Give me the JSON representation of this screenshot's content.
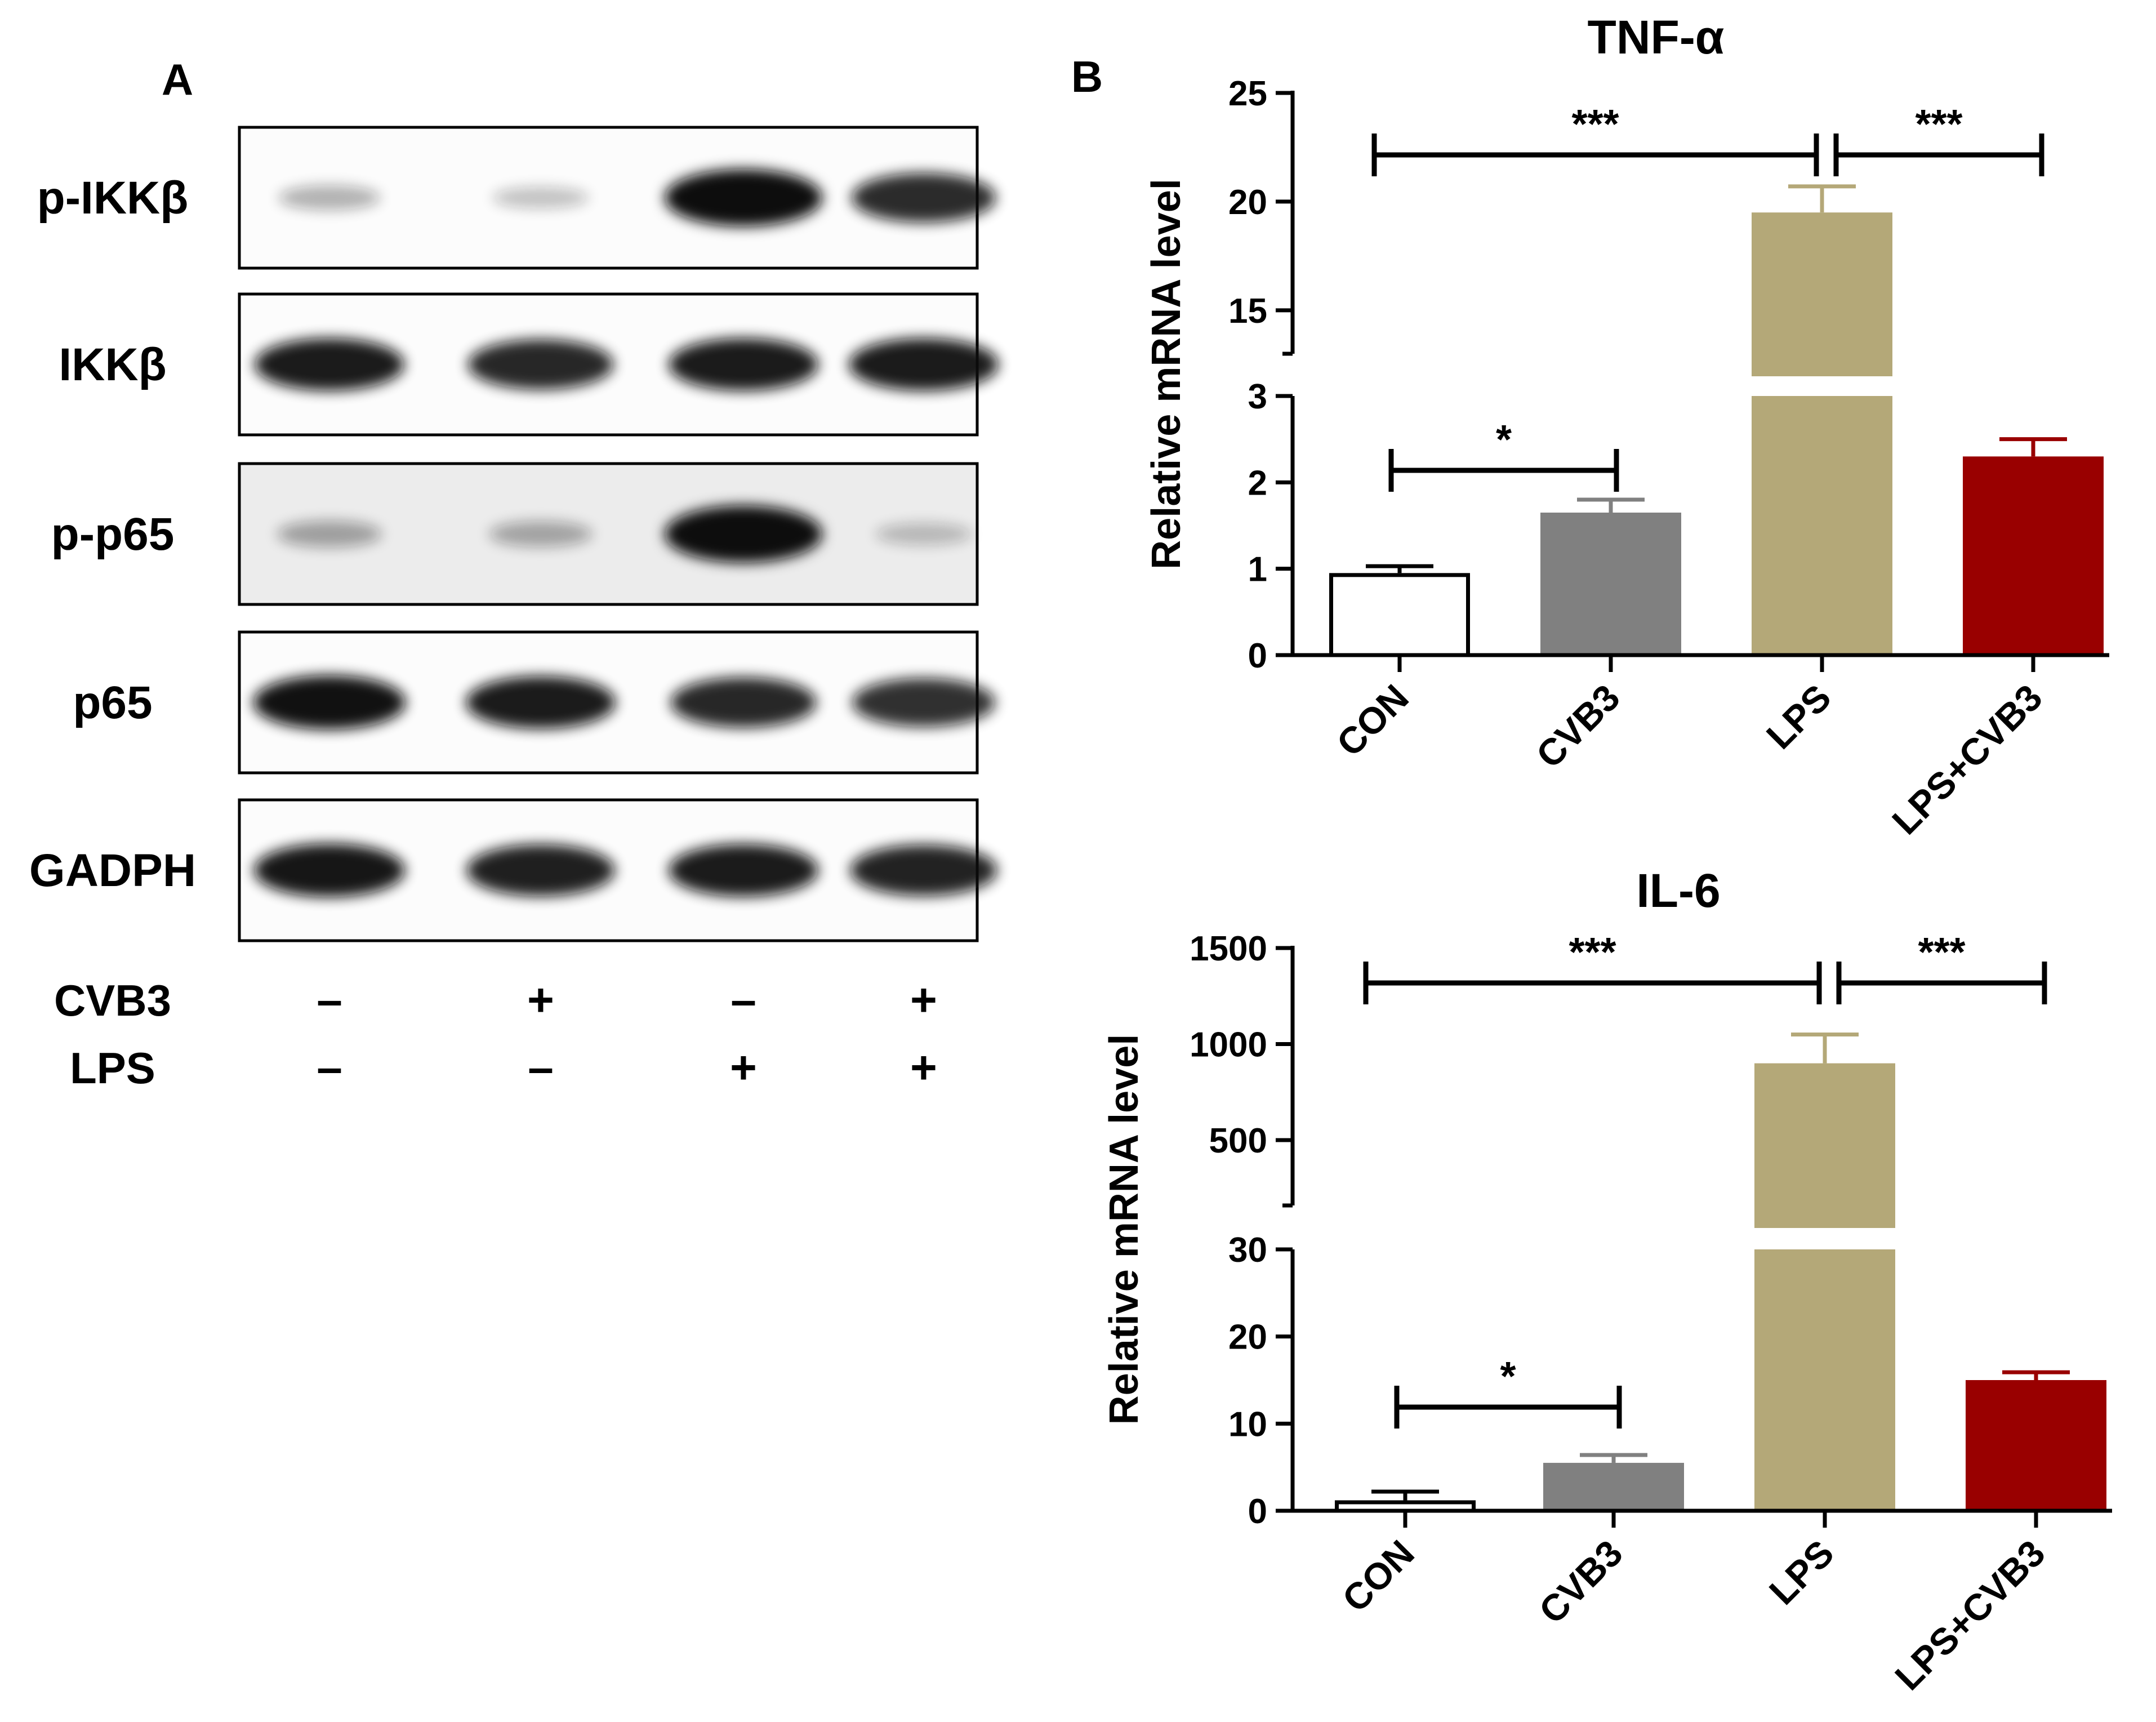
{
  "panel_a": {
    "label": "A",
    "blots": [
      {
        "name": "p-IKKβ",
        "bands": [
          0.18,
          0.1,
          1.0,
          0.8
        ]
      },
      {
        "name": "IKKβ",
        "bands": [
          0.88,
          0.82,
          0.88,
          0.88
        ]
      },
      {
        "name": "p-p65",
        "bands": [
          0.22,
          0.2,
          1.0,
          0.1
        ]
      },
      {
        "name": "p65",
        "bands": [
          0.92,
          0.88,
          0.82,
          0.78
        ]
      },
      {
        "name": "GADPH",
        "bands": [
          0.9,
          0.86,
          0.88,
          0.84
        ]
      }
    ],
    "treatments": [
      {
        "label": "CVB3",
        "signs": [
          "–",
          "+",
          "–",
          "+"
        ]
      },
      {
        "label": "LPS",
        "signs": [
          "–",
          "–",
          "+",
          "+"
        ]
      }
    ]
  },
  "panel_b": {
    "label": "B"
  },
  "chart_data": [
    {
      "type": "bar",
      "title": "TNF-α",
      "ylabel": "Relative mRNA level",
      "categories": [
        "CON",
        "CVB3",
        "LPS",
        "LPS+CVB3"
      ],
      "values": [
        0.95,
        1.65,
        19.5,
        2.3
      ],
      "errors": [
        0.08,
        0.15,
        1.2,
        0.2
      ],
      "broken_axis": {
        "lower": [
          0,
          3
        ],
        "upper": [
          13,
          25
        ]
      },
      "yticks_lower": [
        0,
        1,
        2,
        3
      ],
      "yticks_upper": [
        15,
        20,
        25
      ],
      "colors": [
        "#ffffff",
        "#808080",
        "#b4a878",
        "#990000"
      ],
      "significance": [
        {
          "from": "CON",
          "to": "CVB3",
          "label": "*"
        },
        {
          "from": "CON",
          "to": "LPS",
          "label": "***"
        },
        {
          "from": "LPS",
          "to": "LPS+CVB3",
          "label": "***"
        }
      ]
    },
    {
      "type": "bar",
      "title": "IL-6",
      "ylabel": "Relative mRNA level",
      "categories": [
        "CON",
        "CVB3",
        "LPS",
        "LPS+CVB3"
      ],
      "values": [
        1.2,
        5.5,
        900,
        15
      ],
      "errors": [
        1.0,
        0.9,
        150,
        0.9
      ],
      "broken_axis": {
        "lower": [
          0,
          30
        ],
        "upper": [
          160,
          1500
        ]
      },
      "yticks_lower": [
        0,
        10,
        20,
        30
      ],
      "yticks_upper": [
        500,
        1000,
        1500
      ],
      "colors": [
        "#ffffff",
        "#808080",
        "#b4a878",
        "#990000"
      ],
      "significance": [
        {
          "from": "CON",
          "to": "CVB3",
          "label": "*"
        },
        {
          "from": "CON",
          "to": "LPS",
          "label": "***"
        },
        {
          "from": "LPS",
          "to": "LPS+CVB3",
          "label": "***"
        }
      ]
    }
  ]
}
